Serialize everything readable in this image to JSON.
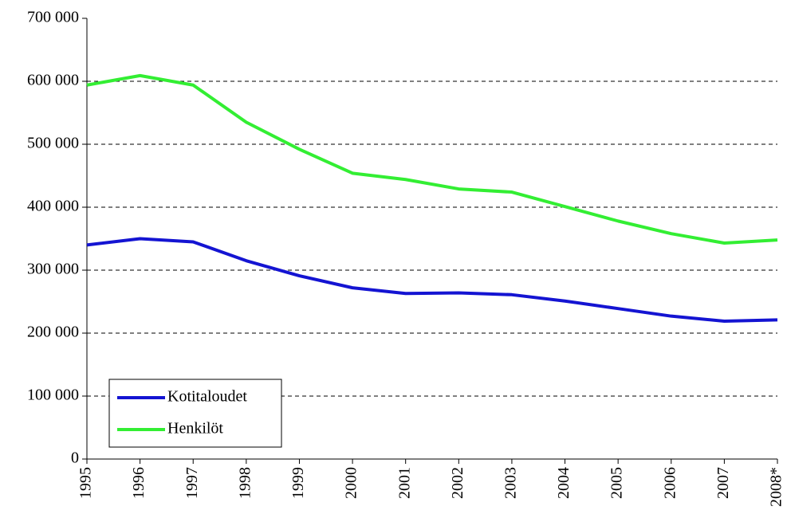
{
  "chart_data": {
    "type": "line",
    "categories": [
      "1995",
      "1996",
      "1997",
      "1998",
      "1999",
      "2000",
      "2001",
      "2002",
      "2003",
      "2004",
      "2005",
      "2006",
      "2007",
      "2008*"
    ],
    "series": [
      {
        "name": "Kotitaloudet",
        "color": "#1414d2",
        "values": [
          340000,
          350000,
          345000,
          315000,
          291000,
          272000,
          263000,
          264000,
          261000,
          251000,
          239000,
          227000,
          219000,
          221000
        ]
      },
      {
        "name": "Henkilöt",
        "color": "#33ee33",
        "values": [
          594000,
          609000,
          594000,
          535000,
          492000,
          454000,
          444000,
          429000,
          424000,
          401000,
          378000,
          358000,
          343000,
          348000
        ]
      }
    ],
    "ylim": [
      0,
      700000
    ],
    "yticks": [
      0,
      {
        "value": 100000,
        "label": "100 000"
      },
      {
        "value": 200000,
        "label": "200 000"
      },
      {
        "value": 300000,
        "label": "300 000"
      },
      {
        "value": 400000,
        "label": "400 000"
      },
      {
        "value": 500000,
        "label": "500 000"
      },
      {
        "value": 600000,
        "label": "600 000"
      },
      {
        "value": 700000,
        "label": "700 000"
      }
    ],
    "grid": true,
    "legend": "lower left"
  }
}
